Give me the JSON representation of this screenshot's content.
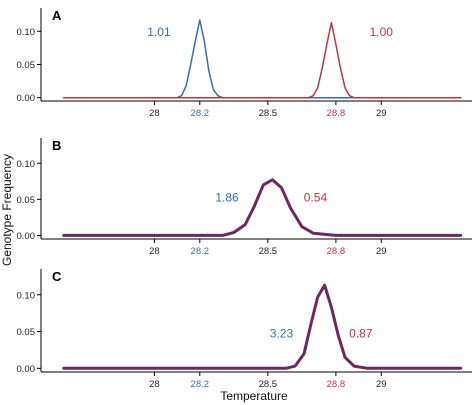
{
  "figure": {
    "ylabel": "Genotype Frequency",
    "xlabel": "Temperature"
  },
  "colors": {
    "blue": "#3f6e9a",
    "red": "#b23a48",
    "purple": "#6a2a5a",
    "axis": "#000000",
    "tick_text": "#222222"
  },
  "chart_data": [
    {
      "panel": "A",
      "type": "line",
      "xlim": [
        27.5,
        29.4
      ],
      "ylim": [
        -0.005,
        0.135
      ],
      "x_ticks": [
        28,
        28.2,
        28.5,
        28.8,
        29
      ],
      "x_tick_labels": [
        "28",
        "28.2",
        "28.5",
        "28.8",
        "29"
      ],
      "x_tick_colors": [
        "tick_text",
        "blue",
        "tick_text",
        "red",
        "tick_text"
      ],
      "y_ticks": [
        0.0,
        0.05,
        0.1
      ],
      "y_tick_labels": [
        "0.00",
        "0.05",
        "0.10"
      ],
      "grid": false,
      "annotations": [
        {
          "text": "1.01",
          "x": 28.02,
          "y": 0.093,
          "color": "blue"
        },
        {
          "text": "1.00",
          "x": 29.0,
          "y": 0.093,
          "color": "red"
        }
      ],
      "series": [
        {
          "color": "blue",
          "stroke_width": 1.5,
          "x": [
            27.6,
            28.1,
            28.12,
            28.14,
            28.16,
            28.18,
            28.2,
            28.22,
            28.24,
            28.26,
            28.28,
            28.3,
            28.32,
            29.35
          ],
          "y": [
            0.0,
            0.0,
            0.003,
            0.018,
            0.05,
            0.085,
            0.117,
            0.085,
            0.04,
            0.012,
            0.003,
            0.0,
            0.0,
            0.0
          ]
        },
        {
          "color": "red",
          "stroke_width": 1.5,
          "x": [
            27.6,
            28.68,
            28.7,
            28.72,
            28.74,
            28.76,
            28.78,
            28.8,
            28.82,
            28.84,
            28.86,
            28.88,
            28.9,
            29.35
          ],
          "y": [
            0.0,
            0.0,
            0.003,
            0.015,
            0.045,
            0.08,
            0.113,
            0.08,
            0.045,
            0.015,
            0.003,
            0.0,
            0.0,
            0.0
          ]
        }
      ]
    },
    {
      "panel": "B",
      "type": "line",
      "xlim": [
        27.5,
        29.4
      ],
      "ylim": [
        -0.005,
        0.135
      ],
      "x_ticks": [
        28,
        28.2,
        28.5,
        28.8,
        29
      ],
      "x_tick_labels": [
        "28",
        "28.2",
        "28.5",
        "28.8",
        "29"
      ],
      "x_tick_colors": [
        "tick_text",
        "blue",
        "tick_text",
        "red",
        "tick_text"
      ],
      "y_ticks": [
        0.0,
        0.05,
        0.1
      ],
      "y_tick_labels": [
        "0.00",
        "0.05",
        "0.10"
      ],
      "grid": false,
      "annotations": [
        {
          "text": "1.86",
          "x": 28.32,
          "y": 0.047,
          "color": "blue"
        },
        {
          "text": "0.54",
          "x": 28.71,
          "y": 0.047,
          "color": "red"
        }
      ],
      "series": [
        {
          "color": "purple",
          "stroke_width": 3,
          "x": [
            27.6,
            28.3,
            28.35,
            28.4,
            28.44,
            28.48,
            28.52,
            28.56,
            28.6,
            28.65,
            28.7,
            28.8,
            29.35
          ],
          "y": [
            0.0,
            0.0,
            0.004,
            0.015,
            0.04,
            0.07,
            0.077,
            0.066,
            0.038,
            0.012,
            0.003,
            0.0,
            0.0
          ]
        }
      ]
    },
    {
      "panel": "C",
      "type": "line",
      "xlim": [
        27.5,
        29.4
      ],
      "ylim": [
        -0.005,
        0.135
      ],
      "x_ticks": [
        28,
        28.2,
        28.5,
        28.8,
        29
      ],
      "x_tick_labels": [
        "28",
        "28.2",
        "28.5",
        "28.8",
        "29"
      ],
      "x_tick_colors": [
        "tick_text",
        "blue",
        "tick_text",
        "red",
        "tick_text"
      ],
      "y_ticks": [
        0.0,
        0.05,
        0.1
      ],
      "y_tick_labels": [
        "0.00",
        "0.05",
        "0.10"
      ],
      "grid": false,
      "annotations": [
        {
          "text": "3.23",
          "x": 28.56,
          "y": 0.042,
          "color": "blue"
        },
        {
          "text": "0.87",
          "x": 28.91,
          "y": 0.042,
          "color": "red"
        }
      ],
      "series": [
        {
          "color": "purple",
          "stroke_width": 3,
          "x": [
            27.6,
            28.58,
            28.62,
            28.66,
            28.69,
            28.72,
            28.75,
            28.78,
            28.81,
            28.84,
            28.88,
            28.94,
            29.35
          ],
          "y": [
            0.0,
            0.0,
            0.003,
            0.02,
            0.06,
            0.097,
            0.113,
            0.083,
            0.045,
            0.015,
            0.003,
            0.0,
            0.0
          ]
        }
      ]
    }
  ]
}
